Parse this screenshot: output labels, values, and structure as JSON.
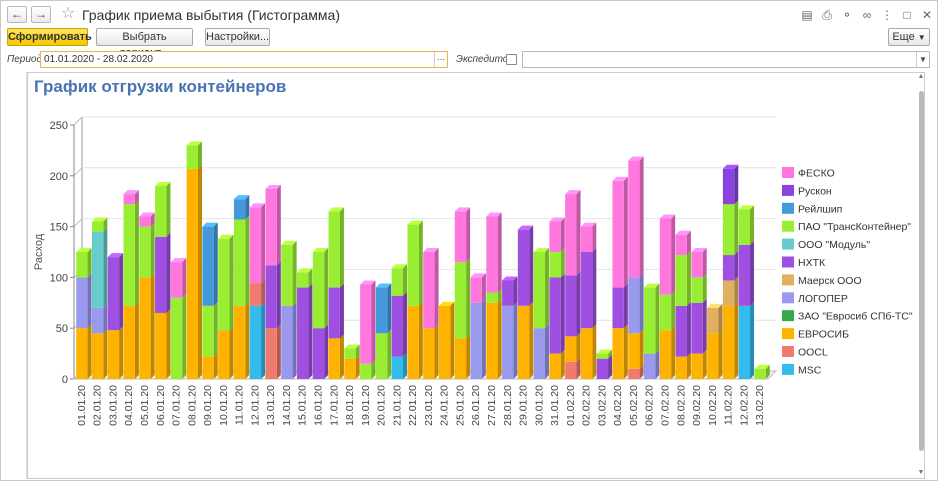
{
  "window": {
    "title": "График приема выбытия (Гистограмма)"
  },
  "toolbar": {
    "generate_label": "Сформировать",
    "variant_label": "Выбрать вариант...",
    "settings_label": "Настройки...",
    "more_label": "Еще"
  },
  "params": {
    "period_label": "Период:",
    "period_value": "01.01.2020 - 28.02.2020",
    "forwarder_label": "Экспедитор:",
    "forwarder_checked": false,
    "forwarder_value": ""
  },
  "report": {
    "title": "График отгрузки контейнеров"
  },
  "icons": [
    "back-arrow-icon",
    "forward-arrow-icon",
    "star-icon",
    "save-icon",
    "print-icon",
    "attach-icon",
    "link-icon",
    "more-icon",
    "maximize-icon",
    "close-icon"
  ],
  "chart_data": {
    "type": "bar",
    "stacked": true,
    "ylabel": "Расход",
    "ylim": [
      0,
      250
    ],
    "yticks": [
      0,
      50,
      100,
      150,
      200,
      250
    ],
    "categories": [
      "01.01.20",
      "02.01.20",
      "03.01.20",
      "04.01.20",
      "05.01.20",
      "06.01.20",
      "07.01.20",
      "08.01.20",
      "09.01.20",
      "10.01.20",
      "11.01.20",
      "12.01.20",
      "13.01.20",
      "14.01.20",
      "15.01.20",
      "16.01.20",
      "17.01.20",
      "18.01.20",
      "19.01.20",
      "20.01.20",
      "21.01.20",
      "22.01.20",
      "23.01.20",
      "24.01.20",
      "25.01.20",
      "26.01.20",
      "27.01.20",
      "28.01.20",
      "29.01.20",
      "30.01.20",
      "31.01.20",
      "01.02.20",
      "02.02.20",
      "03.02.20",
      "04.02.20",
      "05.02.20",
      "06.02.20",
      "07.02.20",
      "08.02.20",
      "09.02.20",
      "10.02.20",
      "11.02.20",
      "12.02.20",
      "13.02.20"
    ],
    "legend_position": "right",
    "series": [
      {
        "name": "MSC",
        "color": "#33bbee",
        "values": [
          0,
          0,
          0,
          0,
          0,
          0,
          0,
          0,
          0,
          0,
          0,
          72,
          0,
          0,
          0,
          0,
          0,
          0,
          0,
          0,
          22,
          0,
          0,
          0,
          0,
          0,
          0,
          0,
          0,
          0,
          0,
          0,
          0,
          0,
          0,
          0,
          0,
          0,
          0,
          0,
          0,
          0,
          72,
          0
        ]
      },
      {
        "name": "OOCL",
        "color": "#f07a6e",
        "values": [
          0,
          0,
          0,
          0,
          0,
          0,
          0,
          0,
          0,
          0,
          0,
          22,
          50,
          0,
          0,
          0,
          0,
          0,
          0,
          0,
          0,
          0,
          0,
          0,
          0,
          0,
          0,
          0,
          0,
          0,
          0,
          17,
          0,
          0,
          0,
          10,
          0,
          0,
          0,
          0,
          0,
          0,
          0,
          0
        ]
      },
      {
        "name": "ЕВРОСИБ",
        "color": "#ffb300",
        "values": [
          50,
          45,
          48,
          72,
          100,
          65,
          0,
          207,
          22,
          48,
          72,
          0,
          0,
          0,
          0,
          0,
          40,
          20,
          0,
          0,
          0,
          72,
          50,
          72,
          40,
          0,
          75,
          0,
          72,
          0,
          25,
          25,
          50,
          0,
          50,
          35,
          0,
          48,
          22,
          25,
          45,
          72,
          0,
          0
        ]
      },
      {
        "name": "ЗАО \"Евросиб СПб-ТС\"",
        "color": "#33a84d",
        "values": [
          0,
          0,
          0,
          0,
          0,
          0,
          0,
          0,
          0,
          0,
          0,
          0,
          0,
          0,
          0,
          0,
          0,
          0,
          0,
          0,
          0,
          0,
          0,
          0,
          0,
          0,
          0,
          0,
          0,
          0,
          0,
          0,
          0,
          0,
          0,
          0,
          0,
          0,
          0,
          0,
          0,
          0,
          0,
          0
        ]
      },
      {
        "name": "ЛОГОПЕР",
        "color": "#9999ee",
        "values": [
          50,
          25,
          0,
          0,
          0,
          0,
          0,
          0,
          0,
          0,
          0,
          0,
          0,
          72,
          0,
          0,
          0,
          0,
          0,
          0,
          0,
          0,
          0,
          0,
          0,
          75,
          0,
          72,
          0,
          50,
          0,
          0,
          0,
          0,
          0,
          55,
          25,
          0,
          0,
          0,
          0,
          0,
          0,
          0
        ]
      },
      {
        "name": "Маерск ООО",
        "color": "#e0b060",
        "values": [
          0,
          0,
          0,
          0,
          0,
          0,
          0,
          0,
          0,
          0,
          0,
          0,
          0,
          0,
          0,
          0,
          0,
          0,
          0,
          0,
          0,
          0,
          0,
          0,
          0,
          0,
          0,
          0,
          0,
          0,
          0,
          0,
          0,
          0,
          0,
          0,
          0,
          0,
          0,
          0,
          25,
          25,
          0,
          0
        ]
      },
      {
        "name": "НХТК",
        "color": "#a050e0",
        "values": [
          0,
          0,
          72,
          0,
          0,
          75,
          0,
          0,
          0,
          0,
          0,
          0,
          62,
          0,
          90,
          50,
          50,
          0,
          0,
          0,
          60,
          0,
          0,
          0,
          0,
          0,
          0,
          25,
          75,
          0,
          75,
          60,
          75,
          20,
          40,
          0,
          0,
          0,
          50,
          50,
          0,
          25,
          60,
          0
        ]
      },
      {
        "name": "ООО \"Модуль\"",
        "color": "#66cccc",
        "values": [
          0,
          75,
          0,
          0,
          0,
          0,
          0,
          0,
          0,
          0,
          0,
          0,
          0,
          0,
          0,
          0,
          0,
          0,
          0,
          0,
          0,
          0,
          0,
          0,
          0,
          0,
          0,
          0,
          0,
          0,
          0,
          0,
          0,
          0,
          0,
          0,
          0,
          0,
          0,
          0,
          0,
          0,
          0,
          0
        ]
      },
      {
        "name": "ПАО \"ТрансКонтейнер\"",
        "color": "#99ee33",
        "values": [
          25,
          10,
          0,
          100,
          50,
          50,
          80,
          23,
          50,
          90,
          85,
          0,
          0,
          60,
          15,
          75,
          75,
          10,
          15,
          45,
          27,
          80,
          0,
          0,
          75,
          0,
          10,
          0,
          0,
          75,
          25,
          0,
          0,
          5,
          0,
          0,
          65,
          35,
          50,
          25,
          0,
          50,
          35,
          10
        ]
      },
      {
        "name": "Рейлшип",
        "color": "#4499dd",
        "values": [
          0,
          0,
          0,
          0,
          0,
          0,
          0,
          0,
          78,
          0,
          20,
          0,
          0,
          0,
          0,
          0,
          0,
          0,
          0,
          45,
          0,
          0,
          0,
          0,
          0,
          0,
          0,
          0,
          0,
          0,
          0,
          0,
          0,
          0,
          0,
          0,
          0,
          0,
          0,
          0,
          0,
          0,
          0,
          0
        ]
      },
      {
        "name": "Рускон",
        "color": "#8844dd",
        "values": [
          0,
          0,
          0,
          0,
          0,
          0,
          0,
          0,
          0,
          0,
          0,
          0,
          0,
          0,
          0,
          0,
          0,
          0,
          0,
          0,
          0,
          0,
          0,
          0,
          0,
          0,
          0,
          0,
          0,
          0,
          0,
          0,
          0,
          0,
          0,
          0,
          0,
          0,
          0,
          0,
          0,
          35,
          0,
          0
        ]
      },
      {
        "name": "ФЕСКО",
        "color": "#ff77dd",
        "values": [
          0,
          0,
          0,
          10,
          10,
          0,
          35,
          0,
          0,
          0,
          0,
          75,
          75,
          0,
          0,
          0,
          0,
          0,
          78,
          0,
          0,
          0,
          75,
          0,
          50,
          25,
          75,
          0,
          0,
          0,
          30,
          80,
          25,
          0,
          105,
          115,
          0,
          75,
          20,
          25,
          0,
          0,
          0,
          0
        ]
      }
    ]
  }
}
